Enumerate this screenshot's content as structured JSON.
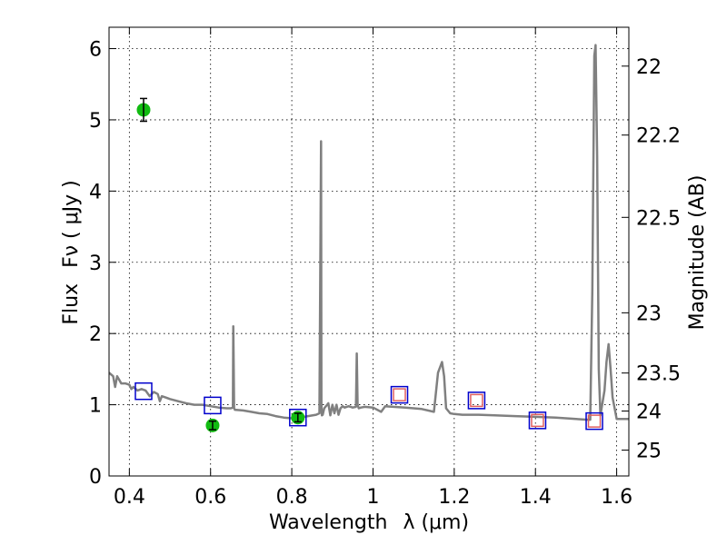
{
  "chart_data": {
    "type": "scatter",
    "title": "",
    "xlabel_prefix": "Wavelength",
    "xlabel_symbol": "λ (μm)",
    "ylabel_prefix": "Flux",
    "ylabel_symbol": "Fν ( μJy )",
    "ylabel_right": "Magnitude (AB)",
    "xlim": [
      0.35,
      1.63
    ],
    "ylim": [
      0,
      6.3
    ],
    "x_ticks": [
      0.4,
      0.6,
      0.8,
      1.0,
      1.2,
      1.4,
      1.6
    ],
    "x_tick_labels": [
      "0.4",
      "0.6",
      "0.8",
      "1",
      "1.2",
      "1.4",
      "1.6"
    ],
    "y_ticks": [
      0,
      1,
      2,
      3,
      4,
      5,
      6
    ],
    "y_tick_labels": [
      "0",
      "1",
      "2",
      "3",
      "4",
      "5",
      "6"
    ],
    "right_ticks": [
      {
        "label": "22",
        "mag": 22.0
      },
      {
        "label": "22.2",
        "mag": 22.2
      },
      {
        "label": "22.5",
        "mag": 22.5
      },
      {
        "label": "23",
        "mag": 23.0
      },
      {
        "label": "23.5",
        "mag": 23.5
      },
      {
        "label": "24",
        "mag": 24.0
      },
      {
        "label": "25",
        "mag": 25.0
      }
    ],
    "grid": true,
    "colors": {
      "model": "#808080",
      "photometry": "#11bb11",
      "model_band": "#0000cc",
      "model_band_inner": "#e06060"
    },
    "series": [
      {
        "kind": "model_spectrum",
        "x": [
          0.35,
          0.36,
          0.365,
          0.37,
          0.375,
          0.38,
          0.39,
          0.4,
          0.405,
          0.41,
          0.42,
          0.43,
          0.44,
          0.45,
          0.46,
          0.47,
          0.475,
          0.48,
          0.49,
          0.5,
          0.52,
          0.54,
          0.56,
          0.58,
          0.6,
          0.62,
          0.64,
          0.65,
          0.655,
          0.656,
          0.657,
          0.658,
          0.66,
          0.68,
          0.7,
          0.72,
          0.74,
          0.76,
          0.78,
          0.8,
          0.82,
          0.84,
          0.86,
          0.868,
          0.872,
          0.873,
          0.874,
          0.876,
          0.88,
          0.89,
          0.895,
          0.9,
          0.905,
          0.91,
          0.915,
          0.92,
          0.925,
          0.93,
          0.94,
          0.95,
          0.958,
          0.96,
          0.962,
          0.965,
          0.97,
          0.98,
          1.0,
          1.02,
          1.03,
          1.05,
          1.08,
          1.1,
          1.12,
          1.15,
          1.16,
          1.17,
          1.175,
          1.18,
          1.19,
          1.2,
          1.22,
          1.26,
          1.3,
          1.35,
          1.4,
          1.45,
          1.5,
          1.53,
          1.535,
          1.54,
          1.545,
          1.548,
          1.552,
          1.556,
          1.56,
          1.57,
          1.575,
          1.58,
          1.585,
          1.59,
          1.6,
          1.605,
          1.63
        ],
        "y": [
          1.45,
          1.4,
          1.25,
          1.4,
          1.35,
          1.3,
          1.3,
          1.28,
          1.22,
          1.25,
          1.2,
          1.22,
          1.2,
          1.12,
          1.18,
          1.15,
          1.05,
          1.12,
          1.1,
          1.08,
          1.05,
          1.02,
          1.0,
          1.0,
          0.98,
          0.96,
          0.95,
          0.95,
          0.96,
          2.1,
          1.5,
          0.95,
          0.93,
          0.92,
          0.9,
          0.88,
          0.87,
          0.84,
          0.82,
          0.81,
          0.82,
          0.84,
          0.86,
          0.88,
          4.7,
          1.0,
          0.85,
          0.86,
          0.95,
          1.02,
          0.85,
          1.0,
          0.88,
          1.0,
          0.86,
          0.95,
          0.98,
          0.96,
          0.98,
          0.96,
          0.97,
          1.72,
          1.0,
          0.95,
          0.96,
          0.97,
          0.96,
          0.9,
          0.98,
          0.97,
          0.96,
          0.95,
          0.94,
          0.9,
          1.45,
          1.6,
          1.4,
          0.95,
          0.88,
          0.87,
          0.86,
          0.86,
          0.85,
          0.84,
          0.83,
          0.82,
          0.8,
          0.79,
          0.79,
          2.6,
          5.9,
          6.05,
          4.5,
          1.5,
          0.85,
          1.2,
          1.6,
          1.85,
          1.5,
          1.1,
          0.8,
          0.8,
          0.8
        ]
      },
      {
        "kind": "model_band_flux",
        "x": [
          0.435,
          0.605,
          0.815,
          1.065,
          1.255,
          1.405,
          1.545
        ],
        "y": [
          1.19,
          0.99,
          0.82,
          1.14,
          1.06,
          0.78,
          0.77
        ],
        "inner": [
          false,
          false,
          false,
          true,
          true,
          true,
          true
        ]
      },
      {
        "kind": "photometry",
        "x": [
          0.435,
          0.605,
          0.815
        ],
        "y": [
          5.14,
          0.71,
          0.82
        ],
        "yerr": [
          0.16,
          0.06,
          0.06
        ]
      }
    ]
  }
}
